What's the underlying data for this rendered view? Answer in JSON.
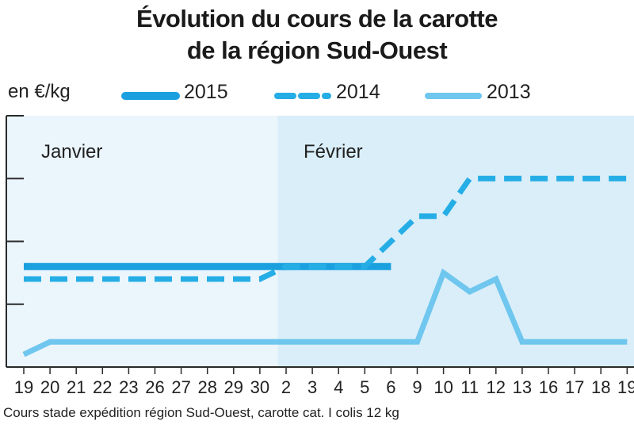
{
  "title_line1": "Évolution du cours de la carotte",
  "title_line2": "de la région Sud-Ouest",
  "unit_label": "en €/kg",
  "note": "Cours stade expédition région Sud-Ouest, carotte cat. I colis 12 kg",
  "colors": {
    "s2015": "#1ba0df",
    "s2014": "#25ade6",
    "s2013": "#6fc6ee",
    "bg_janvier": "#eaf5fc",
    "bg_fevrier": "#d9eef9",
    "axis": "#2a2a2a"
  },
  "chart_data": {
    "type": "line",
    "title": "Évolution du cours de la carotte de la région Sud-Ouest",
    "ylabel": "en €/kg",
    "x": [
      "19",
      "20",
      "21",
      "22",
      "23",
      "26",
      "27",
      "28",
      "29",
      "30",
      "2",
      "3",
      "4",
      "5",
      "6",
      "9",
      "10",
      "11",
      "12",
      "13",
      "16",
      "17",
      "18",
      "19"
    ],
    "months": [
      {
        "label": "Janvier",
        "start_index": 0
      },
      {
        "label": "Février",
        "start_index": 10
      }
    ],
    "y_ticks": 4,
    "ylim": [
      0,
      4
    ],
    "grid": false,
    "legend_position": "top",
    "series": [
      {
        "name": "2015",
        "style": "solid",
        "values": [
          1.6,
          1.6,
          1.6,
          1.6,
          1.6,
          1.6,
          1.6,
          1.6,
          1.6,
          1.6,
          1.6,
          1.6,
          1.6,
          1.6,
          1.6,
          null,
          null,
          null,
          null,
          null,
          null,
          null,
          null,
          null
        ]
      },
      {
        "name": "2014",
        "style": "dashed",
        "values": [
          1.4,
          1.4,
          1.4,
          1.4,
          1.4,
          1.4,
          1.4,
          1.4,
          1.4,
          1.4,
          1.6,
          1.6,
          1.6,
          1.6,
          2.0,
          2.4,
          2.4,
          3.0,
          3.0,
          3.0,
          3.0,
          3.0,
          3.0,
          3.0
        ]
      },
      {
        "name": "2013",
        "style": "solid-light",
        "values": [
          0.2,
          0.4,
          0.4,
          0.4,
          0.4,
          0.4,
          0.4,
          0.4,
          0.4,
          0.4,
          0.4,
          0.4,
          0.4,
          0.4,
          0.4,
          0.4,
          1.5,
          1.2,
          1.4,
          0.4,
          0.4,
          0.4,
          0.4,
          0.4
        ]
      }
    ]
  }
}
